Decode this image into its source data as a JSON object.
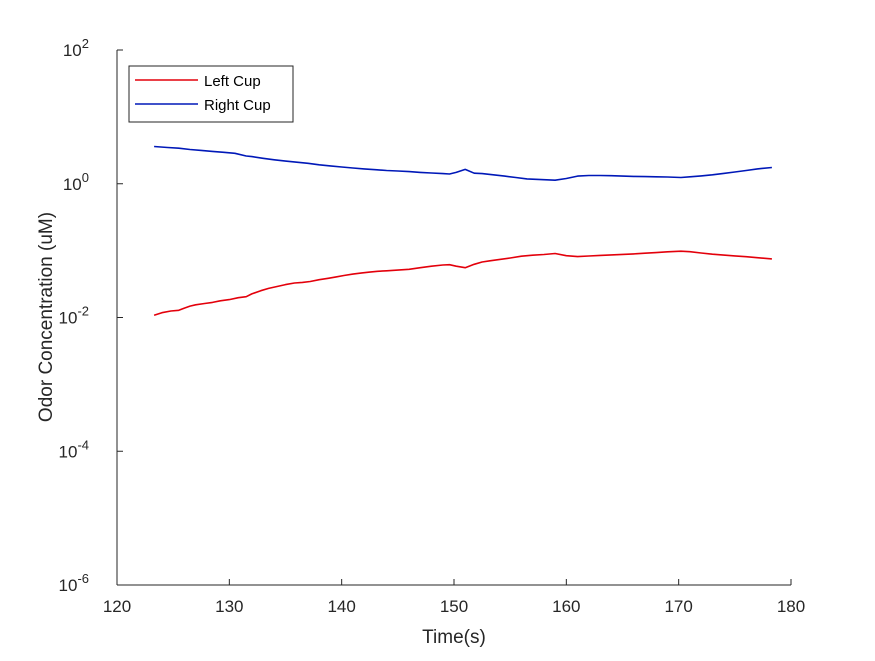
{
  "chart_data": {
    "type": "line",
    "title": "",
    "xlabel": "Time(s)",
    "ylabel": "Odor Concentration (uM)",
    "xlim": [
      120,
      180
    ],
    "ylim": [
      1e-06,
      100
    ],
    "yscale": "log",
    "grid": false,
    "legend_position": "top-left",
    "x_ticks": [
      {
        "value": 120,
        "label": "120"
      },
      {
        "value": 130,
        "label": "130"
      },
      {
        "value": 140,
        "label": "140"
      },
      {
        "value": 150,
        "label": "150"
      },
      {
        "value": 160,
        "label": "160"
      },
      {
        "value": 170,
        "label": "170"
      },
      {
        "value": 180,
        "label": "180"
      }
    ],
    "y_ticks": [
      {
        "value": 1e-06,
        "base": "10",
        "exp": "-6"
      },
      {
        "value": 0.0001,
        "base": "10",
        "exp": "-4"
      },
      {
        "value": 0.01,
        "base": "10",
        "exp": "-2"
      },
      {
        "value": 1,
        "base": "10",
        "exp": "0"
      },
      {
        "value": 100,
        "base": "10",
        "exp": "2"
      }
    ],
    "series": [
      {
        "name": "Left Cup",
        "color": "#e3000b",
        "x": [
          123.3,
          124.0,
          124.8,
          125.5,
          126.0,
          126.5,
          127.0,
          127.8,
          128.5,
          129.2,
          130.0,
          130.8,
          131.5,
          132.0,
          132.8,
          133.5,
          134.2,
          135.0,
          135.8,
          136.5,
          137.2,
          138.0,
          138.8,
          139.5,
          140.2,
          141.0,
          141.8,
          142.5,
          143.2,
          144.0,
          145.0,
          146.0,
          147.0,
          148.0,
          149.0,
          149.6,
          150.2,
          151.0,
          151.8,
          152.5,
          153.2,
          154.0,
          155.0,
          156.0,
          157.0,
          158.0,
          159.0,
          160.0,
          161.0,
          162.0,
          163.0,
          164.0,
          165.0,
          166.0,
          167.0,
          168.0,
          169.0,
          170.2,
          171.0,
          172.0,
          173.0,
          174.0,
          175.0,
          176.0,
          177.0,
          178.3
        ],
        "values": [
          0.0108,
          0.0118,
          0.0125,
          0.0128,
          0.0138,
          0.0148,
          0.0155,
          0.0162,
          0.0168,
          0.0178,
          0.0185,
          0.0198,
          0.0205,
          0.0225,
          0.0252,
          0.0272,
          0.029,
          0.031,
          0.0328,
          0.0335,
          0.0345,
          0.0368,
          0.0385,
          0.0405,
          0.0425,
          0.0445,
          0.0465,
          0.0478,
          0.049,
          0.05,
          0.0512,
          0.0525,
          0.0555,
          0.0585,
          0.061,
          0.0615,
          0.0585,
          0.0555,
          0.0625,
          0.0675,
          0.0705,
          0.0735,
          0.0775,
          0.0825,
          0.0855,
          0.0875,
          0.0905,
          0.084,
          0.0815,
          0.0832,
          0.0848,
          0.0862,
          0.0878,
          0.0892,
          0.0915,
          0.0935,
          0.096,
          0.0982,
          0.0965,
          0.0922,
          0.0885,
          0.0858,
          0.0835,
          0.081,
          0.0785,
          0.0752
        ]
      },
      {
        "name": "Right Cup",
        "color": "#0018b8",
        "x": [
          123.3,
          124.5,
          125.5,
          126.5,
          127.5,
          128.5,
          129.5,
          130.5,
          131.5,
          132.0,
          133.0,
          134.0,
          135.0,
          136.0,
          137.0,
          138.0,
          139.0,
          140.0,
          141.0,
          142.0,
          143.0,
          144.0,
          145.0,
          146.0,
          147.0,
          148.0,
          149.0,
          149.6,
          150.2,
          151.0,
          151.8,
          152.5,
          153.5,
          154.5,
          155.5,
          156.5,
          157.5,
          158.5,
          159.0,
          160.0,
          161.0,
          162.0,
          163.0,
          164.0,
          165.0,
          166.0,
          167.0,
          168.0,
          169.0,
          170.2,
          171.0,
          172.0,
          173.0,
          174.0,
          175.0,
          176.0,
          177.0,
          178.3
        ],
        "values": [
          3.6,
          3.48,
          3.4,
          3.25,
          3.15,
          3.05,
          2.95,
          2.85,
          2.6,
          2.55,
          2.4,
          2.28,
          2.18,
          2.1,
          2.02,
          1.92,
          1.85,
          1.78,
          1.72,
          1.67,
          1.62,
          1.58,
          1.55,
          1.52,
          1.48,
          1.45,
          1.42,
          1.4,
          1.48,
          1.64,
          1.44,
          1.42,
          1.36,
          1.3,
          1.24,
          1.18,
          1.16,
          1.14,
          1.13,
          1.2,
          1.3,
          1.33,
          1.33,
          1.32,
          1.3,
          1.29,
          1.28,
          1.27,
          1.26,
          1.24,
          1.27,
          1.31,
          1.36,
          1.43,
          1.5,
          1.58,
          1.67,
          1.75
        ]
      }
    ]
  }
}
